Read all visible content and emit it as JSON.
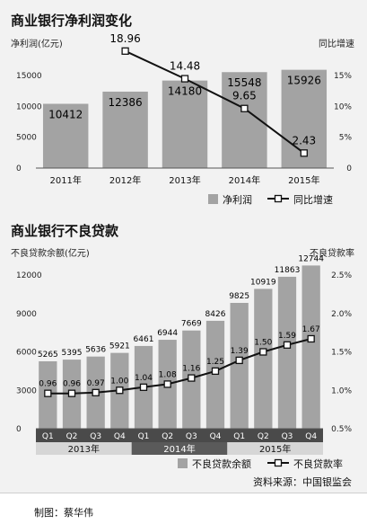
{
  "credit": "制图：蔡华伟",
  "chart_data": [
    {
      "type": "bar",
      "title": "商业银行净利润变化",
      "ylabel": "净利润(亿元)",
      "y2label": "同比增速",
      "categories": [
        "2011年",
        "2012年",
        "2013年",
        "2014年",
        "2015年"
      ],
      "ylim": [
        0,
        15000
      ],
      "yticks": [
        "15000",
        "10000",
        "5000",
        "0"
      ],
      "y2lim": [
        0,
        15
      ],
      "y2ticks": [
        "15%",
        "10%",
        "5%",
        "0"
      ],
      "series": [
        {
          "name": "净利润",
          "kind": "bar",
          "axis": "left",
          "color": "#a3a3a3",
          "values": [
            10412,
            12386,
            14180,
            15548,
            15926
          ]
        },
        {
          "name": "同比增速",
          "kind": "line",
          "axis": "right",
          "color": "#111111",
          "values": [
            null,
            18.96,
            14.48,
            9.65,
            2.43
          ]
        }
      ],
      "legend": "bottom-right",
      "grid": false
    },
    {
      "type": "bar",
      "title": "商业银行不良贷款",
      "ylabel": "不良贷款余额(亿元)",
      "y2label": "不良贷款率",
      "categories": [
        "Q1",
        "Q2",
        "Q3",
        "Q4",
        "Q1",
        "Q2",
        "Q3",
        "Q4",
        "Q1",
        "Q2",
        "Q3",
        "Q4"
      ],
      "groups": [
        {
          "label": "2013年",
          "count": 4
        },
        {
          "label": "2014年",
          "count": 4
        },
        {
          "label": "2015年",
          "count": 4
        }
      ],
      "ylim": [
        0,
        12000
      ],
      "yticks": [
        "12000",
        "9000",
        "6000",
        "3000",
        "0"
      ],
      "y2lim": [
        0.5,
        2.5
      ],
      "y2ticks": [
        "2.5%",
        "2.0%",
        "1.5%",
        "1.0%",
        "0.5%"
      ],
      "series": [
        {
          "name": "不良贷款余额",
          "kind": "bar",
          "axis": "left",
          "color": "#a3a3a3",
          "values": [
            5265,
            5395,
            5636,
            5921,
            6461,
            6944,
            7669,
            8426,
            9825,
            10919,
            11863,
            12744
          ]
        },
        {
          "name": "不良贷款率",
          "kind": "line",
          "axis": "right",
          "color": "#111111",
          "values": [
            0.96,
            0.96,
            0.97,
            1.0,
            1.04,
            1.08,
            1.16,
            1.25,
            1.39,
            1.5,
            1.59,
            1.67
          ]
        }
      ],
      "legend": "bottom-right",
      "grid": false
    }
  ],
  "source_note": "资料来源：中国银监会"
}
